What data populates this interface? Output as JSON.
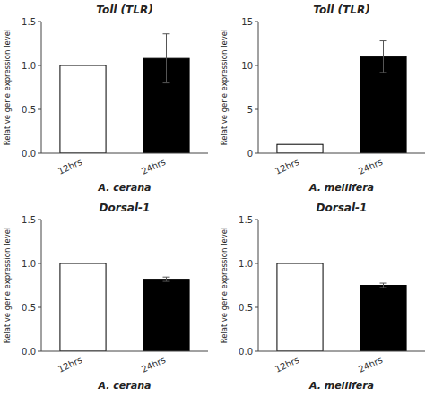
{
  "chart_data": [
    {
      "type": "bar",
      "title": "Toll (TLR)",
      "xlabel": "A. cerana",
      "ylabel": "Relative gene expression level",
      "categories": [
        "12hrs",
        "24hrs"
      ],
      "values": [
        1.0,
        1.08
      ],
      "errors": [
        0.0,
        0.28
      ],
      "colors": [
        "white",
        "black"
      ],
      "ylim": [
        0,
        1.5
      ],
      "yticks": [
        {
          "value": 0,
          "label": "0.0"
        },
        0.5,
        {
          "value": 1,
          "label": "1.0"
        },
        1.5
      ],
      "grid": false
    },
    {
      "type": "bar",
      "title": "Toll (TLR)",
      "xlabel": "A. mellifera",
      "ylabel": "Relative gene expression level",
      "categories": [
        "12hrs",
        "24hrs"
      ],
      "values": [
        1.0,
        11.0
      ],
      "errors": [
        0.0,
        1.8
      ],
      "colors": [
        "white",
        "black"
      ],
      "ylim": [
        0,
        15
      ],
      "yticks": [
        0,
        5,
        10,
        15
      ],
      "grid": false
    },
    {
      "type": "bar",
      "title": "Dorsal-1",
      "xlabel": "A. cerana",
      "ylabel": "Relative gene expression level",
      "categories": [
        "12hrs",
        "24hrs"
      ],
      "values": [
        1.0,
        0.82
      ],
      "errors": [
        0.0,
        0.025
      ],
      "colors": [
        "white",
        "black"
      ],
      "ylim": [
        0,
        1.5
      ],
      "yticks": [
        {
          "value": 0,
          "label": "0.0"
        },
        0.5,
        {
          "value": 1,
          "label": "1.0"
        },
        1.5
      ],
      "grid": false
    },
    {
      "type": "bar",
      "title": "Dorsal-1",
      "xlabel": "A. mellifera",
      "ylabel": "Relative gene expression level",
      "categories": [
        "12hrs",
        "24hrs"
      ],
      "values": [
        1.0,
        0.75
      ],
      "errors": [
        0.0,
        0.025
      ],
      "colors": [
        "white",
        "black"
      ],
      "ylim": [
        0,
        1.5
      ],
      "yticks": [
        {
          "value": 0,
          "label": "0.0"
        },
        0.5,
        {
          "value": 1,
          "label": "1.0"
        },
        1.5
      ],
      "grid": false
    }
  ]
}
